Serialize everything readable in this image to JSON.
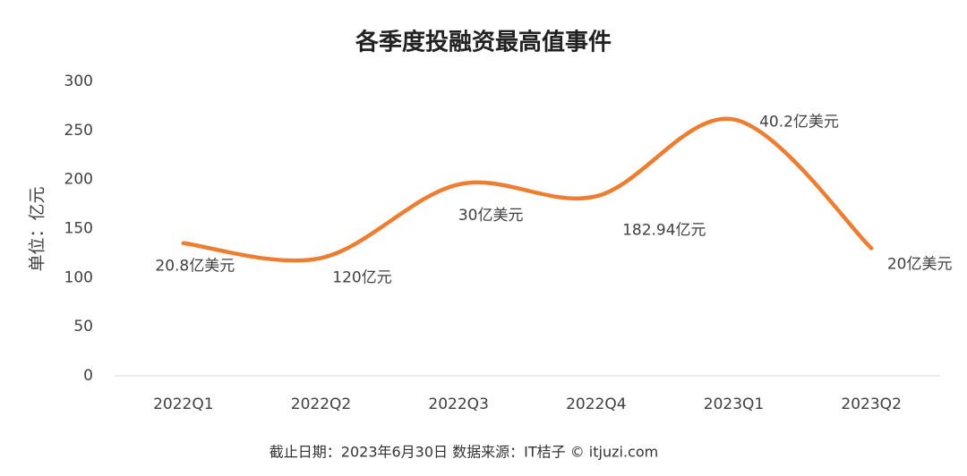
{
  "chart_data": {
    "type": "line",
    "title": "各季度投融资最高值事件",
    "y_label": "单位：亿元",
    "footer": "截止日期：2023年6月30日   数据来源：IT桔子 © itjuzi.com",
    "categories": [
      "2022Q1",
      "2022Q2",
      "2022Q3",
      "2022Q4",
      "2023Q1",
      "2023Q2"
    ],
    "series": [
      {
        "name": "最高值事件",
        "color": "#ed7d31",
        "values": [
          135.2,
          120,
          195,
          182.94,
          261.3,
          130
        ],
        "value_labels": [
          "20.8亿美元",
          "120亿元",
          "30亿美元",
          "182.94亿元",
          "40.2亿美元",
          "20亿美元"
        ]
      }
    ],
    "ylim": [
      0,
      300
    ],
    "yticks": [
      0,
      50,
      100,
      150,
      200,
      250,
      300
    ],
    "grid": false,
    "smooth": true
  }
}
